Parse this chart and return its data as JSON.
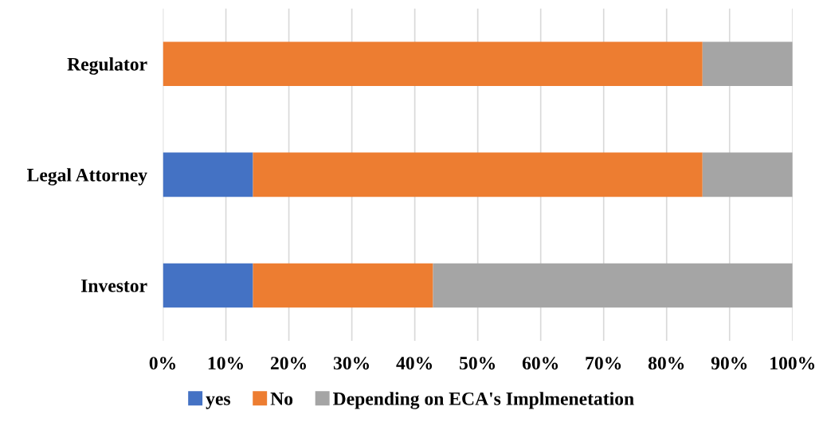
{
  "chart_data": {
    "type": "bar",
    "orientation": "horizontal",
    "stacked": true,
    "categories": [
      "Regulator",
      "Legal Attorney",
      "Investor"
    ],
    "series": [
      {
        "name": "yes",
        "color": "#4472c4",
        "values": [
          0,
          14.3,
          14.3
        ]
      },
      {
        "name": "No",
        "color": "#ed7d31",
        "values": [
          85.7,
          71.4,
          28.6
        ]
      },
      {
        "name": "Depending on ECA's Implmenetation",
        "color": "#a5a5a5",
        "values": [
          14.3,
          14.3,
          57.1
        ]
      }
    ],
    "xlim": [
      0,
      100
    ],
    "xticks": [
      {
        "value": 0,
        "label": "0%"
      },
      {
        "value": 10,
        "label": "10%"
      },
      {
        "value": 20,
        "label": "20%"
      },
      {
        "value": 30,
        "label": "30%"
      },
      {
        "value": 40,
        "label": "40%"
      },
      {
        "value": 50,
        "label": "50%"
      },
      {
        "value": 60,
        "label": "60%"
      },
      {
        "value": 70,
        "label": "70%"
      },
      {
        "value": 80,
        "label": "80%"
      },
      {
        "value": 90,
        "label": "90%"
      },
      {
        "value": 100,
        "label": "100%"
      }
    ],
    "grid": "x",
    "legend": "bottom"
  }
}
